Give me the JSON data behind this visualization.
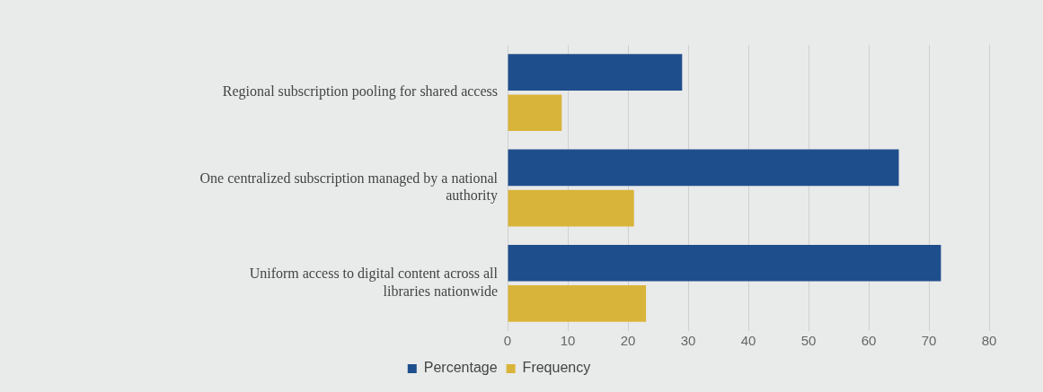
{
  "chart_data": {
    "type": "bar",
    "orientation": "horizontal",
    "categories": [
      "Regional subscription pooling for shared access",
      "One centralized subscription managed by a national authority",
      "Uniform access to digital content across all libraries nationwide"
    ],
    "series": [
      {
        "name": "Percentage",
        "color": "#1f4e8c",
        "values": [
          29,
          65,
          72
        ]
      },
      {
        "name": "Frequency",
        "color": "#d9b43a",
        "values": [
          9,
          21,
          23
        ]
      }
    ],
    "xlim": [
      0,
      80
    ],
    "xticks": [
      0,
      10,
      20,
      30,
      40,
      50,
      60,
      70,
      80
    ],
    "grid": "x",
    "legend": "bottom"
  }
}
